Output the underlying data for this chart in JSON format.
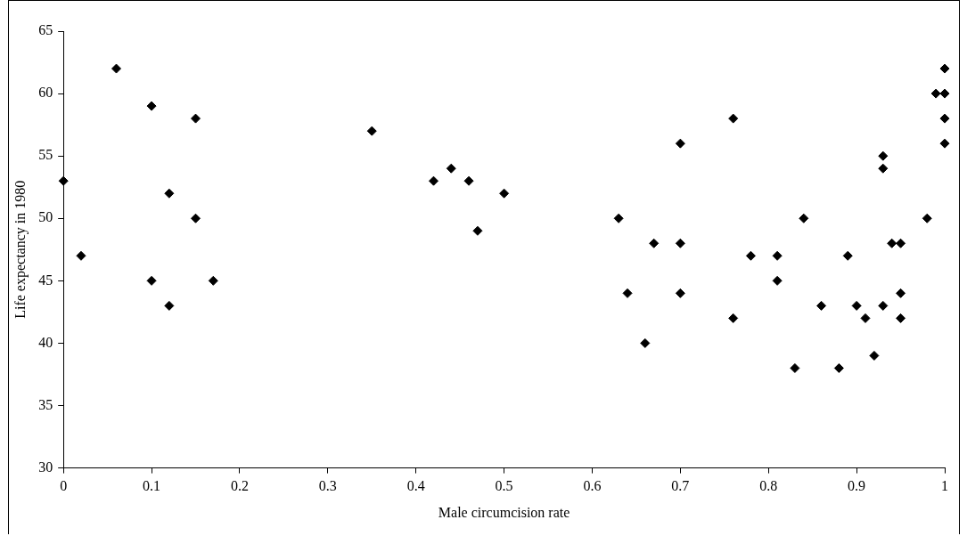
{
  "chart_data": {
    "type": "scatter",
    "xlabel": "Male circumcision rate",
    "ylabel": "Life expectancy in 1980",
    "marker": "diamond",
    "grid": false,
    "legend": false,
    "xlim": [
      0,
      1
    ],
    "xticks": [
      0,
      0.1,
      0.2,
      0.3,
      0.4,
      0.5,
      0.6,
      0.7,
      0.8,
      0.9,
      1
    ],
    "ylim": [
      30,
      65
    ],
    "yticks": [
      30,
      35,
      40,
      45,
      50,
      55,
      60,
      65
    ],
    "series": [
      {
        "color": "#000000",
        "x": [
          0,
          0.02,
          0.06,
          0.1,
          0.1,
          0.12,
          0.12,
          0.15,
          0.15,
          0.17,
          0.35,
          0.42,
          0.44,
          0.46,
          0.47,
          0.5,
          0.63,
          0.64,
          0.66,
          0.67,
          0.7,
          0.7,
          0.7,
          0.76,
          0.76,
          0.78,
          0.81,
          0.81,
          0.83,
          0.84,
          0.86,
          0.88,
          0.89,
          0.9,
          0.91,
          0.92,
          0.93,
          0.93,
          0.93,
          0.94,
          0.95,
          0.95,
          0.95,
          0.98,
          0.99,
          1,
          1,
          1,
          1
        ],
        "values": [
          53,
          47,
          62,
          59,
          45,
          52,
          43,
          58,
          50,
          45,
          57,
          53,
          54,
          53,
          49,
          52,
          50,
          44,
          40,
          48,
          56,
          48,
          44,
          58,
          42,
          47,
          47,
          45,
          38,
          50,
          43,
          38,
          47,
          43,
          42,
          39,
          55,
          54,
          43,
          48,
          48,
          44,
          42,
          50,
          60,
          62,
          60,
          58,
          56
        ]
      }
    ]
  }
}
